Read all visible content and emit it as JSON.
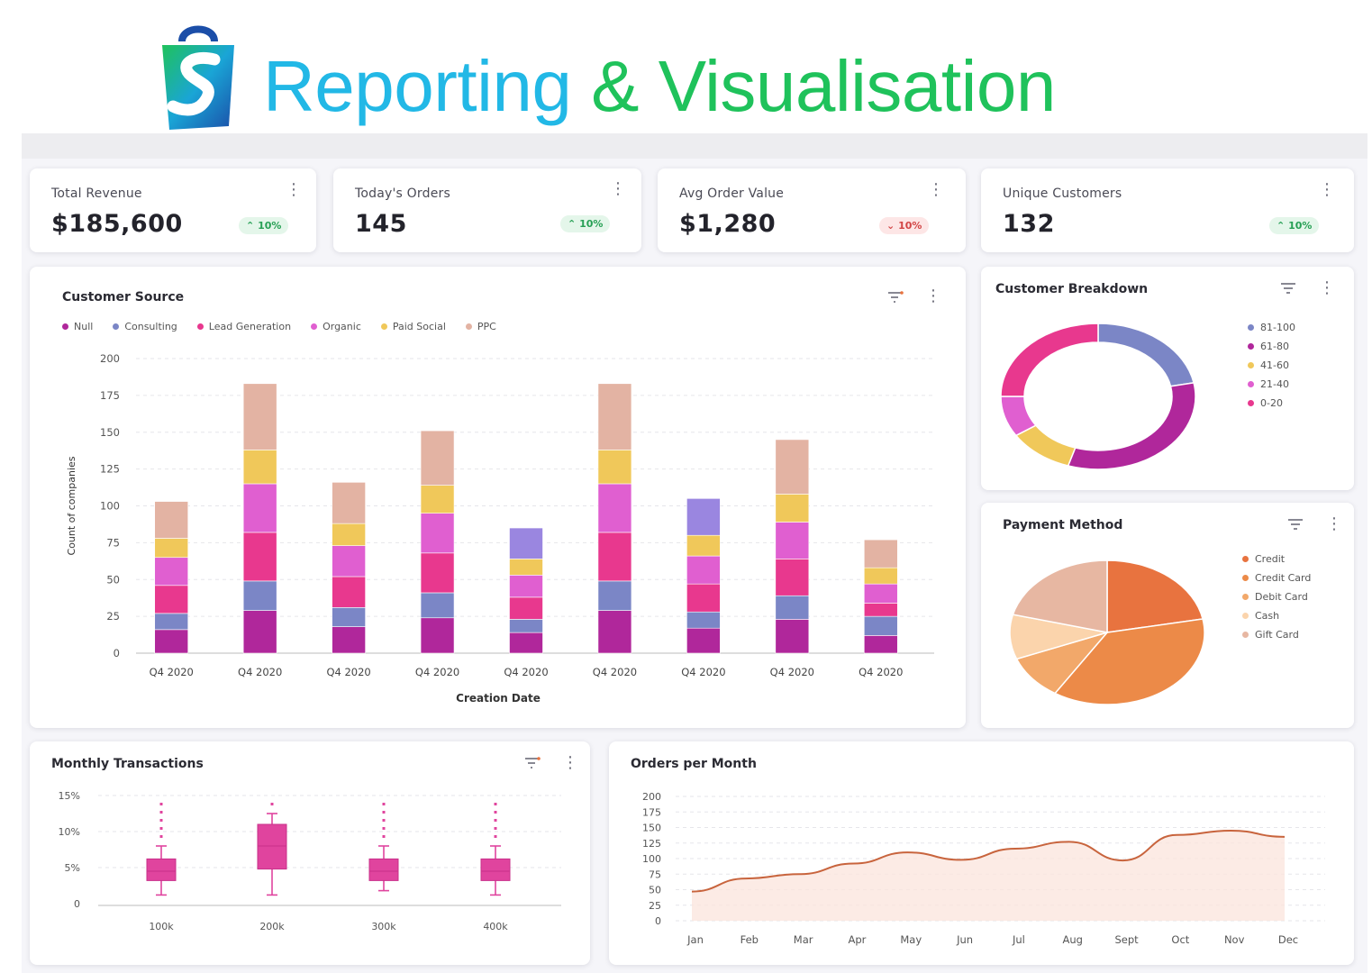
{
  "hero": {
    "title_part1": "Reporting",
    "title_part2": "& Visualisation"
  },
  "kpis": [
    {
      "label": "Total Revenue",
      "value": "$185,600",
      "change": "10%",
      "direction": "up"
    },
    {
      "label": "Today's Orders",
      "value": "145",
      "change": "10%",
      "direction": "up"
    },
    {
      "label": "Avg Order Value",
      "value": "$1,280",
      "change": "10%",
      "direction": "down"
    },
    {
      "label": "Unique Customers",
      "value": "132",
      "change": "10%",
      "direction": "up"
    }
  ],
  "icons": {
    "menu": "kebab-icon",
    "filter": "filter-icon",
    "logo": "shopping-bag-logo-icon"
  },
  "colors": {
    "null": "#b0279b",
    "consulting": "#7b86c6",
    "lead_generation": "#e8388e",
    "organic": "#e05fd0",
    "paid_social": "#f0c85a",
    "ppc": "#e3b3a3",
    "purple_extra": "#9a86e0",
    "up": "#27a055",
    "down": "#d24545"
  },
  "customer_source": {
    "title": "Customer Source",
    "legend": [
      "Null",
      "Consulting",
      "Lead Generation",
      "Organic",
      "Paid Social",
      "PPC"
    ],
    "chart_data": {
      "type": "bar",
      "stacked": true,
      "xlabel": "Creation Date",
      "ylabel": "Count of companies",
      "ylim": [
        0,
        200
      ],
      "yticks": [
        0,
        25,
        50,
        75,
        100,
        125,
        150,
        175,
        200
      ],
      "categories": [
        "Q4 2020",
        "Q4 2020",
        "Q4 2020",
        "Q4 2020",
        "Q4 2020",
        "Q4 2020",
        "Q4 2020",
        "Q4 2020",
        "Q4 2020"
      ],
      "series": [
        {
          "name": "Null",
          "values": [
            16,
            29,
            18,
            24,
            14,
            29,
            17,
            23,
            12
          ]
        },
        {
          "name": "Consulting",
          "values": [
            11,
            20,
            13,
            17,
            9,
            20,
            11,
            16,
            13
          ]
        },
        {
          "name": "Lead Generation",
          "values": [
            19,
            33,
            21,
            27,
            15,
            33,
            19,
            25,
            9
          ]
        },
        {
          "name": "Organic",
          "values": [
            19,
            33,
            21,
            27,
            15,
            33,
            19,
            25,
            13
          ]
        },
        {
          "name": "Paid Social",
          "values": [
            13,
            23,
            15,
            19,
            11,
            23,
            14,
            19,
            11
          ]
        },
        {
          "name": "PPC",
          "values": [
            25,
            45,
            28,
            37,
            0,
            45,
            0,
            37,
            19
          ]
        },
        {
          "name": "",
          "values": [
            0,
            0,
            0,
            0,
            21,
            0,
            25,
            0,
            0
          ]
        }
      ]
    }
  },
  "customer_breakdown": {
    "title": "Customer Breakdown",
    "legend": [
      "81-100",
      "61-80",
      "41-60",
      "21-40",
      "0-20"
    ],
    "chart_data": {
      "type": "pie",
      "donut": true,
      "labels": [
        "81-100",
        "61-80",
        "41-60",
        "21-40",
        "0-20"
      ],
      "values": [
        22,
        33,
        11,
        9,
        25
      ],
      "colors": [
        "#7b86c6",
        "#b0279b",
        "#f0c85a",
        "#e05fd0",
        "#e8388e"
      ]
    }
  },
  "payment_method": {
    "title": "Payment Method",
    "legend": [
      "Credit",
      "Credit Card",
      "Debit Card",
      "Cash",
      "Gift Card"
    ],
    "chart_data": {
      "type": "pie",
      "labels": [
        "Credit",
        "Credit Card",
        "Debit Card",
        "Cash",
        "Gift Card"
      ],
      "values": [
        22,
        37,
        10,
        10,
        21
      ],
      "colors": [
        "#e8733f",
        "#ec8a48",
        "#f2a86a",
        "#fbd4ac",
        "#e7b7a2"
      ]
    }
  },
  "monthly_transactions": {
    "title": "Monthly Transactions",
    "chart_data": {
      "type": "box",
      "categories": [
        "100k",
        "200k",
        "300k",
        "400k"
      ],
      "ylim": [
        0,
        15
      ],
      "yticks": [
        "0",
        "5%",
        "10%",
        "15%"
      ],
      "boxes": [
        {
          "min": 1.2,
          "q1": 3.2,
          "median": 4.5,
          "q3": 6.2,
          "max": 8.0,
          "outlier_top": 14.0
        },
        {
          "min": 1.2,
          "q1": 4.8,
          "median": 8.0,
          "q3": 11.0,
          "max": 12.5,
          "outlier_top": 14.0
        },
        {
          "min": 1.8,
          "q1": 3.2,
          "median": 4.5,
          "q3": 6.2,
          "max": 8.0,
          "outlier_top": 14.0
        },
        {
          "min": 1.2,
          "q1": 3.2,
          "median": 4.5,
          "q3": 6.2,
          "max": 8.0,
          "outlier_top": 14.0
        }
      ]
    }
  },
  "orders_per_month": {
    "title": "Orders per Month",
    "chart_data": {
      "type": "area",
      "x": [
        "Jan",
        "Feb",
        "Mar",
        "Apr",
        "May",
        "Jun",
        "Jul",
        "Aug",
        "Sept",
        "Oct",
        "Nov",
        "Dec"
      ],
      "values": [
        47,
        68,
        75,
        92,
        110,
        98,
        116,
        127,
        97,
        138,
        145,
        135
      ],
      "ylim": [
        0,
        200
      ],
      "yticks": [
        0,
        25,
        50,
        75,
        100,
        125,
        150,
        175,
        200
      ]
    }
  }
}
